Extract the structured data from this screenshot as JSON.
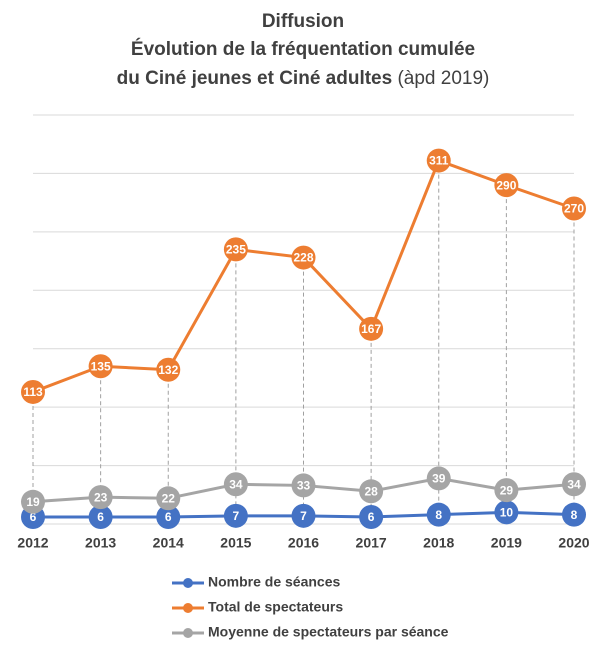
{
  "chart_data": {
    "type": "line",
    "title_lines": [
      "Diffusion",
      "Évolution de la fréquentation cumulée",
      "du Ciné jeunes et Ciné adultes"
    ],
    "title_note": "(àpd 2019)",
    "categories": [
      "2012",
      "2013",
      "2014",
      "2015",
      "2016",
      "2017",
      "2018",
      "2019",
      "2020"
    ],
    "series": [
      {
        "name": "Nombre de séances",
        "color": "#4472c4",
        "values": [
          6,
          6,
          6,
          7,
          7,
          6,
          8,
          10,
          8
        ]
      },
      {
        "name": "Total de spectateurs",
        "color": "#ed7d31",
        "values": [
          113,
          135,
          132,
          235,
          228,
          167,
          311,
          290,
          270
        ]
      },
      {
        "name": "Moyenne de spectateurs par séance",
        "color": "#a5a5a5",
        "values": [
          19,
          23,
          22,
          34,
          33,
          28,
          39,
          29,
          34
        ]
      }
    ],
    "ylim": [
      0,
      350
    ],
    "yticks": [
      0,
      50,
      100,
      150,
      200,
      250,
      300,
      350
    ],
    "grid": true,
    "drop_lines": true,
    "legend": "bottom"
  }
}
